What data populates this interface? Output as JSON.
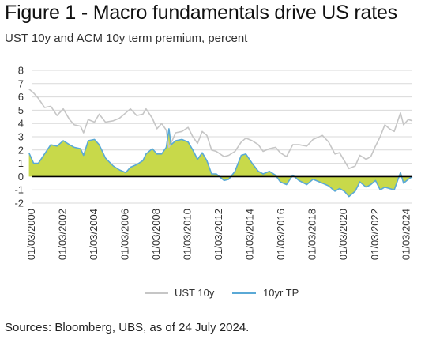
{
  "title": "Figure 1 - Macro fundamentals drive US rates",
  "subtitle": "UST 10y and ACM 10y term premium, percent",
  "source": "Sources: Bloomberg, UBS, as of 24 July 2024.",
  "colors": {
    "ust": "#c6c6c6",
    "tp_line": "#5aa9d6",
    "tp_fill": "#c8d94a",
    "zero": "#000000",
    "grid": "#d9d9d9"
  },
  "chart_data": {
    "type": "line",
    "title": "",
    "xlabel": "",
    "ylabel": "",
    "ylim": [
      -2,
      8
    ],
    "yticks": [
      "8",
      "7",
      "6",
      "5",
      "4",
      "3",
      "2",
      "1",
      "0",
      "-1",
      "-2"
    ],
    "xlim": [
      2000.17,
      2024.56
    ],
    "xtick_values": [
      2000.17,
      2002.17,
      2004.17,
      2006.17,
      2008.17,
      2010.17,
      2012.17,
      2014.17,
      2016.17,
      2018.17,
      2020.17,
      2022.17,
      2024.17
    ],
    "xtick_labels": [
      "01/03/2000",
      "01/03/2002",
      "01/03/2004",
      "01/03/2006",
      "01/03/2008",
      "01/03/2010",
      "01/03/2012",
      "01/03/2014",
      "01/03/2016",
      "01/03/2018",
      "01/03/2020",
      "01/03/2022",
      "01/03/2024"
    ],
    "grid": true,
    "legend_position": "bottom",
    "series": [
      {
        "name": "UST 10y",
        "style": "line",
        "x": [
          2000.0,
          2000.3,
          2000.6,
          2001.0,
          2001.4,
          2001.8,
          2002.2,
          2002.6,
          2002.9,
          2003.3,
          2003.5,
          2003.8,
          2004.2,
          2004.5,
          2004.9,
          2005.4,
          2005.8,
          2006.2,
          2006.5,
          2006.9,
          2007.3,
          2007.5,
          2007.9,
          2008.2,
          2008.5,
          2008.8,
          2008.97,
          2009.1,
          2009.4,
          2009.8,
          2010.2,
          2010.5,
          2010.8,
          2011.1,
          2011.4,
          2011.7,
          2012.0,
          2012.5,
          2012.8,
          2013.2,
          2013.6,
          2013.9,
          2014.3,
          2014.7,
          2015.0,
          2015.4,
          2015.8,
          2016.1,
          2016.5,
          2016.9,
          2017.3,
          2017.8,
          2018.2,
          2018.8,
          2019.2,
          2019.6,
          2019.9,
          2020.2,
          2020.5,
          2020.9,
          2021.2,
          2021.6,
          2021.9,
          2022.2,
          2022.5,
          2022.8,
          2023.1,
          2023.4,
          2023.8,
          2024.0,
          2024.3,
          2024.56
        ],
        "y": [
          6.6,
          6.3,
          5.9,
          5.2,
          5.3,
          4.6,
          5.1,
          4.3,
          3.9,
          3.8,
          3.3,
          4.3,
          4.1,
          4.7,
          4.1,
          4.2,
          4.4,
          4.8,
          5.1,
          4.6,
          4.7,
          5.1,
          4.4,
          3.6,
          4.0,
          3.5,
          2.2,
          2.5,
          3.3,
          3.4,
          3.7,
          3.0,
          2.5,
          3.4,
          3.1,
          2.0,
          1.9,
          1.5,
          1.6,
          1.9,
          2.6,
          2.9,
          2.7,
          2.4,
          1.9,
          2.1,
          2.2,
          1.8,
          1.5,
          2.4,
          2.4,
          2.3,
          2.8,
          3.1,
          2.6,
          1.7,
          1.8,
          1.2,
          0.6,
          0.8,
          1.6,
          1.3,
          1.5,
          2.3,
          3.0,
          3.9,
          3.6,
          3.4,
          4.8,
          3.9,
          4.3,
          4.2
        ]
      },
      {
        "name": "10yr TP",
        "style": "area",
        "x": [
          2000.0,
          2000.3,
          2000.6,
          2001.0,
          2001.4,
          2001.8,
          2002.2,
          2002.6,
          2002.9,
          2003.3,
          2003.5,
          2003.8,
          2004.2,
          2004.5,
          2004.9,
          2005.4,
          2005.8,
          2006.2,
          2006.5,
          2006.9,
          2007.3,
          2007.5,
          2007.9,
          2008.2,
          2008.5,
          2008.8,
          2008.97,
          2009.1,
          2009.4,
          2009.8,
          2010.2,
          2010.5,
          2010.8,
          2011.1,
          2011.4,
          2011.7,
          2012.0,
          2012.5,
          2012.8,
          2013.2,
          2013.6,
          2013.9,
          2014.3,
          2014.7,
          2015.0,
          2015.4,
          2015.8,
          2016.1,
          2016.5,
          2016.9,
          2017.3,
          2017.8,
          2018.2,
          2018.8,
          2019.2,
          2019.6,
          2019.9,
          2020.2,
          2020.5,
          2020.9,
          2021.2,
          2021.6,
          2021.9,
          2022.2,
          2022.5,
          2022.8,
          2023.1,
          2023.4,
          2023.8,
          2024.0,
          2024.3,
          2024.56
        ],
        "y": [
          1.8,
          1.0,
          1.0,
          1.7,
          2.4,
          2.3,
          2.7,
          2.4,
          2.2,
          2.1,
          1.6,
          2.7,
          2.8,
          2.4,
          1.4,
          0.8,
          0.5,
          0.3,
          0.7,
          0.9,
          1.2,
          1.7,
          2.1,
          1.7,
          1.7,
          2.2,
          3.6,
          2.4,
          2.7,
          2.8,
          2.6,
          2.0,
          1.3,
          1.8,
          1.2,
          0.2,
          0.2,
          -0.3,
          -0.2,
          0.4,
          1.6,
          1.7,
          1.0,
          0.4,
          0.2,
          0.4,
          0.1,
          -0.4,
          -0.6,
          0.1,
          -0.3,
          -0.6,
          -0.2,
          -0.5,
          -0.7,
          -1.1,
          -0.9,
          -1.1,
          -1.5,
          -1.1,
          -0.4,
          -0.8,
          -0.6,
          -0.3,
          -1.0,
          -0.8,
          -0.9,
          -1.0,
          0.3,
          -0.5,
          -0.2,
          0.0
        ]
      }
    ]
  }
}
